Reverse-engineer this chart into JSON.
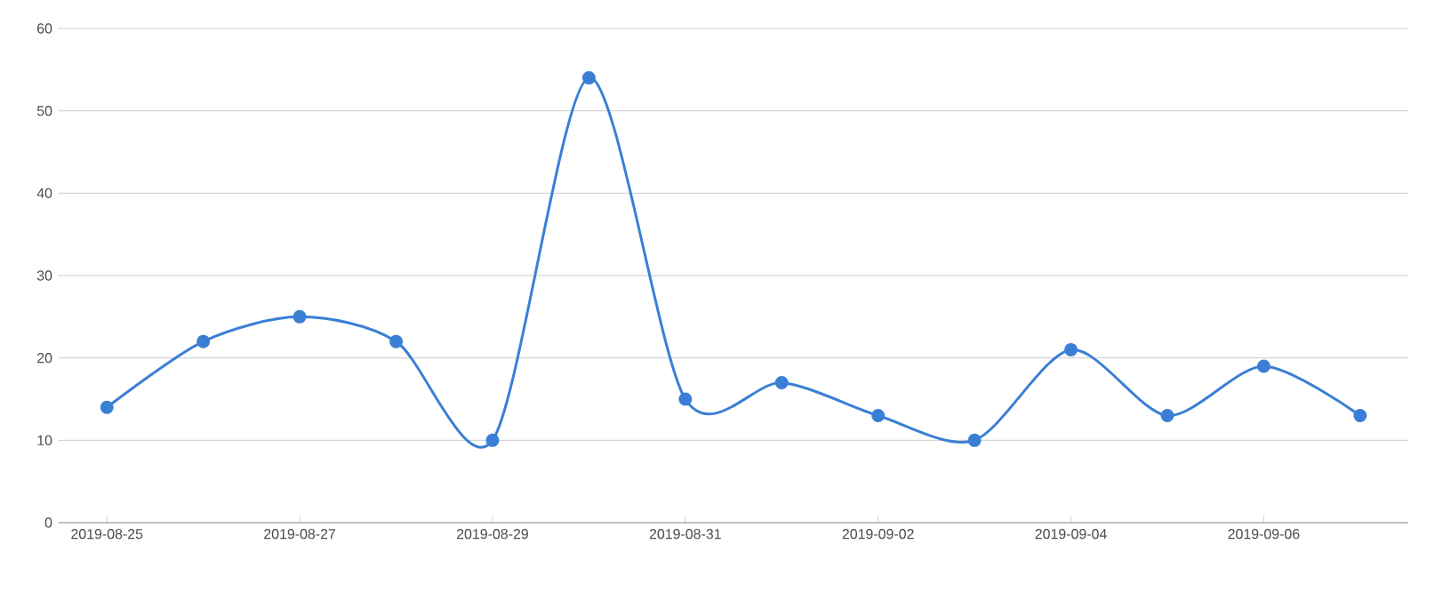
{
  "chart_data": {
    "type": "line",
    "categories": [
      "2019-08-25",
      null,
      "2019-08-27",
      null,
      "2019-08-29",
      null,
      "2019-08-31",
      null,
      "2019-09-02",
      null,
      "2019-09-04",
      null,
      "2019-09-06",
      null
    ],
    "series": [
      {
        "color": "#3a7fd5",
        "values": [
          14,
          22,
          25,
          22,
          10,
          54,
          15,
          17,
          13,
          10,
          21,
          13,
          19,
          13
        ]
      }
    ],
    "ylim": [
      0,
      60
    ],
    "yticks": [
      0,
      10,
      20,
      30,
      40,
      50,
      60
    ],
    "grid": "y",
    "marker": "circle",
    "line_style": "solid"
  }
}
